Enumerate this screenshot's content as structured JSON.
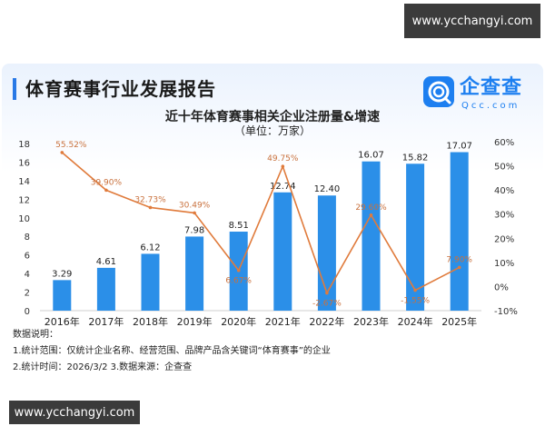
{
  "watermark": {
    "top": "www.ycchangyi.com",
    "bottom": "www.ycchangyi.com"
  },
  "header": {
    "report_title": "体育赛事行业发展报告"
  },
  "logo": {
    "name": "企查查",
    "sub": "Qcc.com"
  },
  "colors": {
    "bar": "#2b8fe8",
    "line": "#e07b3c",
    "line_label": "#c9713d",
    "accent": "#2979e6"
  },
  "chart_data": {
    "type": "bar",
    "title": "近十年体育赛事相关企业注册量&增速",
    "subtitle": "（单位：万家）",
    "categories": [
      "2016年",
      "2017年",
      "2018年",
      "2019年",
      "2020年",
      "2021年",
      "2022年",
      "2023年",
      "2024年",
      "2025年"
    ],
    "series": [
      {
        "type": "bar",
        "axis": "left",
        "values": [
          3.29,
          4.61,
          6.12,
          7.98,
          8.51,
          12.74,
          12.4,
          16.07,
          15.82,
          17.07
        ],
        "labels": [
          "3.29",
          "4.61",
          "6.12",
          "7.98",
          "8.51",
          "12.74",
          "12.40",
          "16.07",
          "15.82",
          "17.07"
        ]
      },
      {
        "type": "line",
        "axis": "right",
        "values": [
          55.52,
          39.9,
          32.73,
          30.49,
          6.67,
          49.75,
          -2.67,
          29.6,
          -1.55,
          7.9
        ],
        "labels": [
          "55.52%",
          "39.90%",
          "32.73%",
          "30.49%",
          "6.67%",
          "49.75%",
          "-2.67%",
          "29.60%",
          "-1.55%",
          "7.90%"
        ]
      }
    ],
    "left_axis": {
      "ylim": [
        0,
        18
      ],
      "ticks": [
        "0",
        "2",
        "4",
        "6",
        "8",
        "10",
        "12",
        "14",
        "16",
        "18"
      ]
    },
    "right_axis": {
      "ylim": [
        -10,
        60
      ],
      "ticks": [
        "-10%",
        "0%",
        "10%",
        "20%",
        "30%",
        "40%",
        "50%",
        "60%"
      ]
    },
    "grid": false,
    "legend": "none"
  },
  "notes": {
    "heading": "数据说明：",
    "line1": "1.统计范围：仅统计企业名称、经营范围、品牌产品含关键词“体育赛事”的企业",
    "line2": "2.统计时间：2026/3/2  3.数据来源：企查查"
  }
}
